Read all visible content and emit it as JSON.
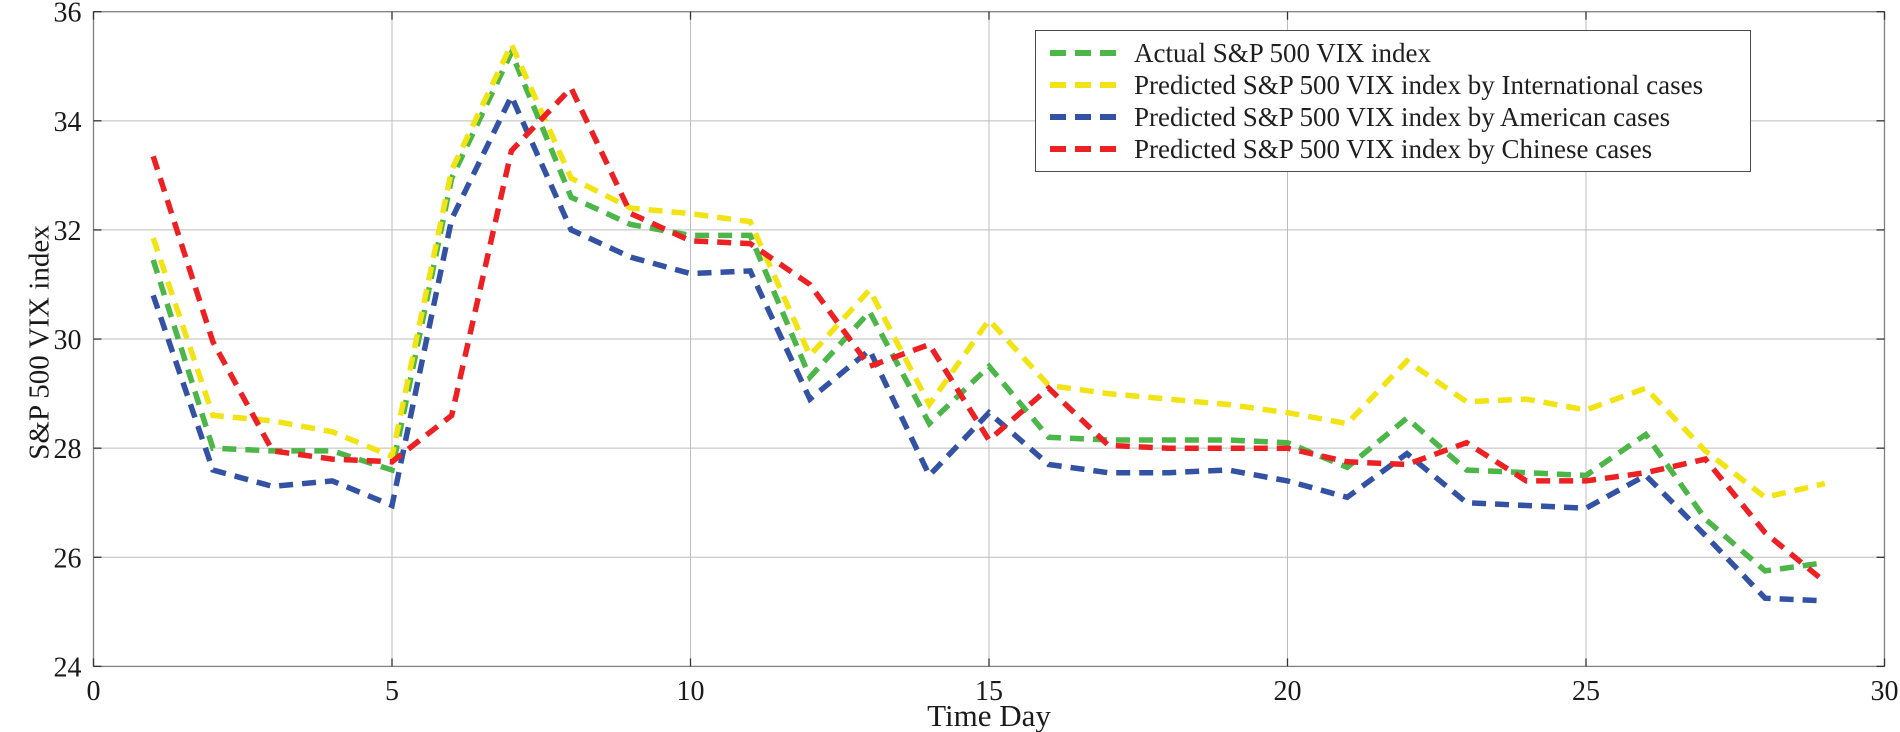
{
  "chart_data": {
    "type": "line",
    "title": "",
    "xlabel": "Time Day",
    "ylabel": "S&P 500 VIX index",
    "xlim": [
      0,
      30
    ],
    "ylim": [
      24,
      36
    ],
    "xticks": [
      0,
      5,
      10,
      15,
      20,
      25,
      30
    ],
    "yticks": [
      24,
      26,
      28,
      30,
      32,
      34,
      36
    ],
    "grid": true,
    "line_style": "dashed",
    "legend_position": "upper right, inside plot",
    "x": [
      1,
      2,
      3,
      4,
      5,
      6,
      7,
      8,
      9,
      10,
      11,
      12,
      13,
      14,
      15,
      16,
      17,
      18,
      19,
      20,
      21,
      22,
      23,
      24,
      25,
      26,
      27,
      28,
      29
    ],
    "series": [
      {
        "name": "Actual S&P 500 VIX index",
        "color": "#4CB648",
        "values": [
          31.45,
          28.0,
          27.95,
          27.95,
          27.6,
          32.95,
          35.25,
          32.6,
          32.1,
          31.9,
          31.9,
          29.3,
          30.5,
          28.45,
          29.5,
          28.2,
          28.15,
          28.15,
          28.15,
          28.1,
          27.65,
          28.55,
          27.6,
          27.55,
          27.5,
          28.25,
          26.7,
          25.75,
          25.9
        ]
      },
      {
        "name": "Predicted S&P 500 VIX index by International cases",
        "color": "#F2E414",
        "values": [
          31.85,
          28.6,
          28.5,
          28.3,
          27.85,
          33.1,
          35.4,
          32.95,
          32.4,
          32.3,
          32.15,
          29.7,
          30.9,
          28.8,
          30.35,
          29.15,
          29.0,
          28.9,
          28.8,
          28.65,
          28.45,
          29.6,
          28.85,
          28.9,
          28.7,
          29.1,
          27.95,
          27.1,
          27.35
        ]
      },
      {
        "name": "Predicted S&P 500 VIX index by American cases",
        "color": "#3352A3",
        "values": [
          30.8,
          27.6,
          27.3,
          27.4,
          26.95,
          32.2,
          34.45,
          32.0,
          31.5,
          31.2,
          31.25,
          28.9,
          29.8,
          27.5,
          28.65,
          27.7,
          27.55,
          27.55,
          27.6,
          27.4,
          27.1,
          27.9,
          27.0,
          26.95,
          26.9,
          27.5,
          26.4,
          25.25,
          25.2
        ]
      },
      {
        "name": "Predicted S&P 500 VIX index by Chinese cases",
        "color": "#ED2024",
        "values": [
          33.35,
          29.95,
          27.95,
          27.8,
          27.75,
          28.6,
          33.45,
          34.6,
          32.3,
          31.8,
          31.75,
          31.0,
          29.5,
          29.9,
          28.15,
          29.1,
          28.05,
          28.0,
          28.0,
          28.0,
          27.75,
          27.7,
          28.1,
          27.4,
          27.4,
          27.55,
          27.8,
          26.45,
          25.55
        ]
      }
    ]
  },
  "style": {
    "grid_color": "#bdbdbd",
    "frame_color": "#808080",
    "tick_color": "#333333",
    "label_color": "#1a1a1a",
    "background": "#ffffff"
  }
}
